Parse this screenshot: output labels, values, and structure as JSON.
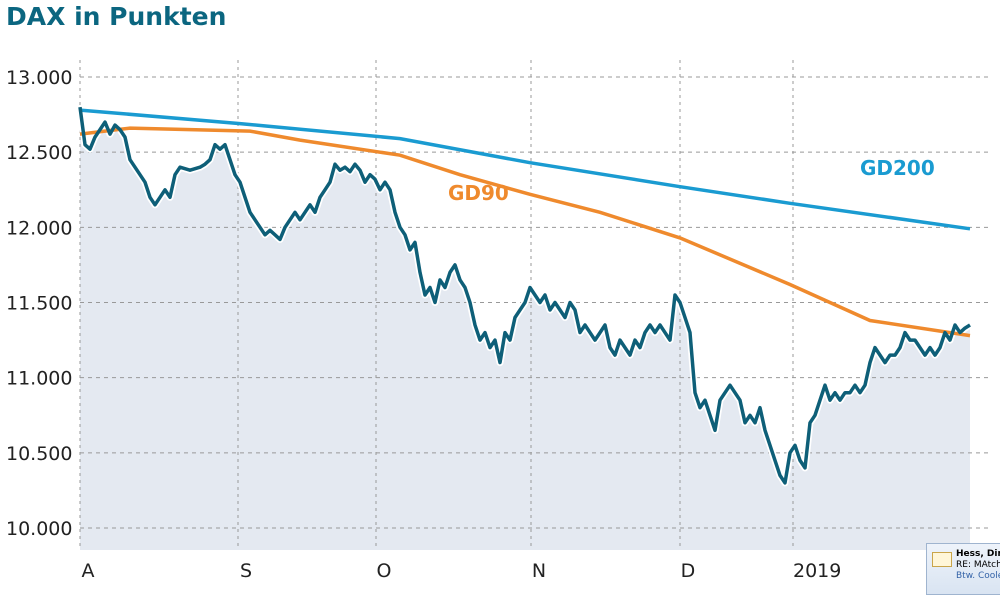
{
  "chart_data": {
    "type": "line",
    "title": "DAX in Punkten",
    "xlabel": "",
    "ylabel": "",
    "ylim": [
      10000,
      13000
    ],
    "yticks": [
      10000,
      10500,
      11000,
      11500,
      12000,
      12500,
      13000
    ],
    "ytick_labels": [
      "10.000",
      "10.500",
      "11.000",
      "11.500",
      "12.000",
      "12.500",
      "13.000"
    ],
    "xlim": [
      0,
      178
    ],
    "xticks": [
      0,
      31.6,
      59.2,
      90.2,
      120,
      142.6
    ],
    "xtick_labels": [
      "A",
      "S",
      "O",
      "N",
      "D",
      "2019"
    ],
    "grid": true,
    "series": [
      {
        "name": "DAX",
        "color": "#0e5f78",
        "area": true,
        "values": [
          12800,
          12550,
          12520,
          12600,
          12650,
          12700,
          12620,
          12680,
          12650,
          12600,
          12450,
          12400,
          12350,
          12300,
          12200,
          12150,
          12200,
          12250,
          12200,
          12350,
          12400,
          12390,
          12380,
          12390,
          12400,
          12420,
          12450,
          12550,
          12520,
          12550,
          12450,
          12350,
          12300,
          12200,
          12100,
          12050,
          12000,
          11950,
          11980,
          11950,
          11920,
          12000,
          12050,
          12100,
          12050,
          12100,
          12150,
          12100,
          12200,
          12250,
          12300,
          12420,
          12380,
          12400,
          12370,
          12420,
          12380,
          12300,
          12350,
          12320,
          12250,
          12300,
          12250,
          12100,
          12000,
          11950,
          11850,
          11900,
          11700,
          11550,
          11600,
          11500,
          11650,
          11600,
          11700,
          11750,
          11650,
          11600,
          11500,
          11350,
          11250,
          11300,
          11200,
          11250,
          11100,
          11300,
          11250,
          11400,
          11450,
          11500,
          11600,
          11550,
          11500,
          11550,
          11450,
          11500,
          11450,
          11400,
          11500,
          11450,
          11300,
          11350,
          11300,
          11250,
          11300,
          11350,
          11200,
          11150,
          11250,
          11200,
          11150,
          11250,
          11200,
          11300,
          11350,
          11300,
          11350,
          11300,
          11250,
          11550,
          11500,
          11400,
          11300,
          10900,
          10800,
          10850,
          10750,
          10650,
          10850,
          10900,
          10950,
          10900,
          10850,
          10700,
          10750,
          10700,
          10800,
          10650,
          10550,
          10450,
          10350,
          10300,
          10500,
          10550,
          10450,
          10400,
          10700,
          10750,
          10850,
          10950,
          10850,
          10900,
          10850,
          10900,
          10900,
          10950,
          10900,
          10950,
          11100,
          11200,
          11150,
          11100,
          11150,
          11150,
          11200,
          11300,
          11250,
          11250,
          11200,
          11150,
          11200,
          11150,
          11200,
          11300,
          11250,
          11350,
          11300,
          11330,
          11350
        ]
      },
      {
        "name": "GD200",
        "color": "#1a9bd1",
        "label": "GD200",
        "points": [
          [
            0,
            12780
          ],
          [
            32,
            12690
          ],
          [
            64,
            12590
          ],
          [
            90,
            12430
          ],
          [
            120,
            12270
          ],
          [
            142,
            12160
          ],
          [
            178,
            11990
          ]
        ]
      },
      {
        "name": "GD90",
        "color": "#ef8a2d",
        "label": "GD90",
        "points": [
          [
            0,
            12620
          ],
          [
            10,
            12660
          ],
          [
            34,
            12640
          ],
          [
            44,
            12580
          ],
          [
            64,
            12480
          ],
          [
            76,
            12350
          ],
          [
            90,
            12220
          ],
          [
            104,
            12100
          ],
          [
            120,
            11930
          ],
          [
            142,
            11620
          ],
          [
            158,
            11380
          ],
          [
            178,
            11280
          ]
        ]
      }
    ]
  },
  "notification": {
    "sender": "Hess, Dirk",
    "subject": "RE: MAtch",
    "preview": "Btw. Cooler"
  }
}
